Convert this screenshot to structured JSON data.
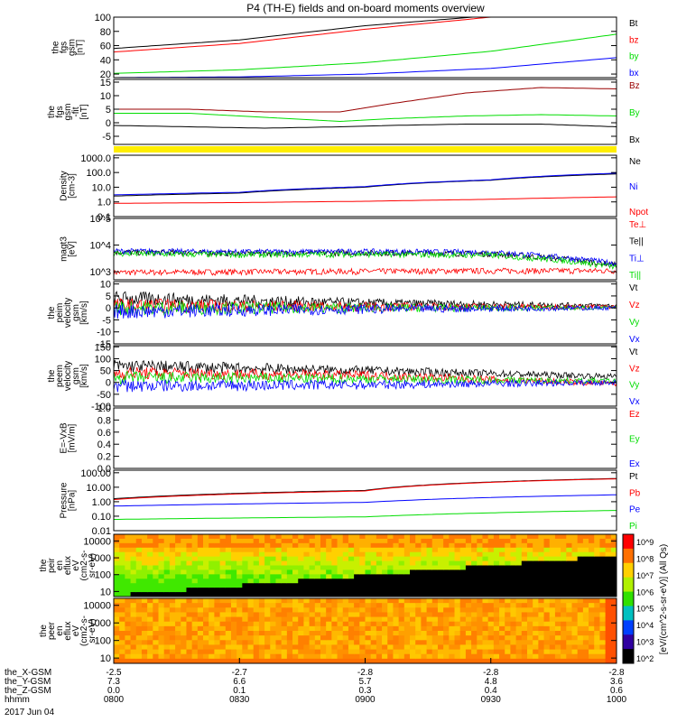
{
  "title": "P4 (TH-E) fields and on-board moments overview",
  "date": "2017 Jun 04",
  "colorbar": {
    "tick_labels": [
      "10^2",
      "10^3",
      "10^4",
      "10^5",
      "10^6",
      "10^7",
      "10^8",
      "10^9"
    ],
    "label": "[eV/(cm^2-s-sr-eV)] (All Qs)"
  },
  "chart_data": [
    {
      "id": "fgs",
      "type": "line",
      "ylabel": [
        "the",
        "fgs",
        "gsm",
        "[nT]"
      ],
      "yticks": [
        "20",
        "40",
        "60",
        "80",
        "100"
      ],
      "ylim": [
        15,
        100
      ],
      "series": [
        {
          "name": "Bt",
          "color": "#000000",
          "x": [
            0,
            0.25,
            0.5,
            0.75,
            1
          ],
          "y": [
            56,
            68,
            88,
            102,
            102
          ]
        },
        {
          "name": "bz",
          "color": "#ff0000",
          "x": [
            0,
            0.25,
            0.5,
            0.75,
            1
          ],
          "y": [
            51,
            63,
            83,
            100,
            100
          ]
        },
        {
          "name": "by",
          "color": "#00dd00",
          "x": [
            0,
            0.25,
            0.5,
            0.75,
            1
          ],
          "y": [
            21,
            26,
            36,
            52,
            76
          ]
        },
        {
          "name": "bx",
          "color": "#0000ff",
          "x": [
            0,
            0.25,
            0.5,
            0.75,
            1
          ],
          "y": [
            15,
            16,
            20,
            28,
            43
          ]
        }
      ]
    },
    {
      "id": "fgs-dsl",
      "type": "line",
      "ylabel": [
        "the",
        "fgs",
        "gsm",
        "-fit",
        "[nT]"
      ],
      "yticks": [
        "-5",
        "0",
        "5",
        "10",
        "15"
      ],
      "ylim": [
        -8,
        16
      ],
      "series": [
        {
          "name": "Bz",
          "color": "#990000",
          "x": [
            0,
            0.15,
            0.3,
            0.45,
            0.55,
            0.7,
            0.85,
            1
          ],
          "y": [
            5,
            5,
            4,
            4,
            7,
            11,
            13,
            12.5
          ]
        },
        {
          "name": "By",
          "color": "#00dd00",
          "x": [
            0,
            0.15,
            0.3,
            0.45,
            0.55,
            0.7,
            0.85,
            1
          ],
          "y": [
            3.5,
            3.5,
            2,
            0.5,
            1.5,
            2.5,
            3,
            2.5
          ]
        },
        {
          "name": "Bx",
          "color": "#000000",
          "x": [
            0,
            0.15,
            0.3,
            0.45,
            0.55,
            0.7,
            0.85,
            1
          ],
          "y": [
            -1,
            -1.5,
            -2,
            -1.5,
            -1,
            -0.5,
            -0.5,
            -1.5
          ]
        }
      ]
    },
    {
      "id": "density",
      "type": "line",
      "log": true,
      "ylabel": [
        "Density",
        "[cm-3]"
      ],
      "yticks": [
        "0.1",
        "1.0",
        "10.0",
        "100.0",
        "1000.0"
      ],
      "ylim": [
        0.1,
        1500
      ],
      "series": [
        {
          "name": "Ne",
          "color": "#000000",
          "x": [
            0,
            0.25,
            0.5,
            0.75,
            1
          ],
          "y": [
            2.5,
            4,
            10,
            30,
            80
          ]
        },
        {
          "name": "Ni",
          "color": "#0000ff",
          "x": [
            0,
            0.25,
            0.5,
            0.75,
            1
          ],
          "y": [
            3,
            4.5,
            11,
            32,
            90
          ]
        },
        {
          "name": "Npot",
          "color": "#ff0000",
          "x": [
            0,
            0.25,
            0.5,
            0.75,
            1
          ],
          "y": [
            0.8,
            0.9,
            1.1,
            1.5,
            2.2
          ]
        }
      ]
    },
    {
      "id": "temperature",
      "type": "line",
      "log": true,
      "ylabel": [
        "magt3",
        "[eV]"
      ],
      "yticks": [
        "10^3",
        "10^4",
        "10^5"
      ],
      "ylim": [
        500,
        100000
      ],
      "series": [
        {
          "name": "Te⊥",
          "color": "#ff0000",
          "x": [
            0,
            0.25,
            0.5,
            0.75,
            1
          ],
          "y": [
            950,
            1000,
            1050,
            1100,
            1100
          ]
        },
        {
          "name": "Te||",
          "color": "#000000",
          "x": [
            0,
            0.25,
            0.5,
            0.75,
            1
          ],
          "y": [
            5500,
            5000,
            5200,
            4800,
            1800
          ]
        },
        {
          "name": "Ti⊥",
          "color": "#0000ff",
          "x": [
            0,
            0.25,
            0.5,
            0.75,
            1
          ],
          "y": [
            6000,
            5600,
            5800,
            5400,
            2000
          ]
        },
        {
          "name": "Ti||",
          "color": "#00dd00",
          "x": [
            0,
            0.25,
            0.5,
            0.75,
            1
          ],
          "y": [
            4800,
            4400,
            4600,
            4200,
            1500
          ]
        }
      ]
    },
    {
      "id": "peim",
      "type": "line",
      "ylabel": [
        "the",
        "peim",
        "velocity",
        "gsm",
        "[km/s]"
      ],
      "yticks": [
        "-15",
        "-10",
        "-5",
        "0",
        "5",
        "10"
      ],
      "ylim": [
        -15,
        11
      ],
      "series": [
        {
          "name": "Vt",
          "color": "#000000",
          "x": [
            0,
            0.5,
            1
          ],
          "y": [
            4,
            2,
            1
          ]
        },
        {
          "name": "Vz",
          "color": "#ff0000",
          "x": [
            0,
            0.5,
            1
          ],
          "y": [
            1,
            0.5,
            0.5
          ]
        },
        {
          "name": "Vy",
          "color": "#00dd00",
          "x": [
            0,
            0.5,
            1
          ],
          "y": [
            0,
            0,
            0
          ]
        },
        {
          "name": "Vx",
          "color": "#0000ff",
          "x": [
            0,
            0.5,
            1
          ],
          "y": [
            -1.5,
            -0.5,
            0
          ]
        }
      ]
    },
    {
      "id": "peem",
      "type": "line",
      "ylabel": [
        "the",
        "peem",
        "velocity",
        "gsm",
        "[km/s]"
      ],
      "yticks": [
        "-100",
        "-50",
        "0",
        "50",
        "100",
        "150"
      ],
      "ylim": [
        -100,
        155
      ],
      "series": [
        {
          "name": "Vt",
          "color": "#000000",
          "x": [
            0,
            0.5,
            1
          ],
          "y": [
            70,
            50,
            25
          ]
        },
        {
          "name": "Vz",
          "color": "#ff0000",
          "x": [
            0,
            0.5,
            1
          ],
          "y": [
            40,
            30,
            -5
          ]
        },
        {
          "name": "Vy",
          "color": "#00dd00",
          "x": [
            0,
            0.5,
            1
          ],
          "y": [
            20,
            15,
            5
          ]
        },
        {
          "name": "Vx",
          "color": "#0000ff",
          "x": [
            0,
            0.5,
            1
          ],
          "y": [
            -15,
            -10,
            0
          ]
        }
      ]
    },
    {
      "id": "efield",
      "type": "line",
      "ylabel": [
        "E=-VxB",
        "[mV/m]"
      ],
      "yticks": [
        "0.0",
        "0.2",
        "0.4",
        "0.6",
        "0.8",
        "1.0"
      ],
      "ylim": [
        0,
        1
      ],
      "series": [
        {
          "name": "Ez",
          "color": "#ff0000",
          "x": [],
          "y": []
        },
        {
          "name": "Ey",
          "color": "#00dd00",
          "x": [],
          "y": []
        },
        {
          "name": "Ex",
          "color": "#0000ff",
          "x": [],
          "y": []
        }
      ]
    },
    {
      "id": "pressure",
      "type": "line",
      "log": true,
      "ylabel": [
        "Pressure",
        "[nPa]"
      ],
      "yticks": [
        "0.01",
        "0.10",
        "1.00",
        "10.00",
        "100.00"
      ],
      "ylim": [
        0.01,
        150
      ],
      "series": [
        {
          "name": "Pt",
          "color": "#000000",
          "x": [
            0,
            0.5,
            1
          ],
          "y": [
            1.6,
            6,
            40
          ]
        },
        {
          "name": "Pb",
          "color": "#ff0000",
          "x": [
            0,
            0.5,
            1
          ],
          "y": [
            1.4,
            5.5,
            38
          ]
        },
        {
          "name": "Pe",
          "color": "#0000ff",
          "x": [
            0,
            0.5,
            1
          ],
          "y": [
            0.5,
            0.9,
            3
          ]
        },
        {
          "name": "Pi",
          "color": "#00dd00",
          "x": [
            0,
            0.5,
            1
          ],
          "y": [
            0.06,
            0.09,
            0.25
          ]
        }
      ]
    },
    {
      "id": "peir",
      "type": "heatmap",
      "log": true,
      "ylabel": [
        "the",
        "peir",
        "en",
        "eflux",
        "eV",
        "(cm2-s-",
        "sr-eV)"
      ],
      "yticks": [
        "10",
        "100",
        "1000",
        "10000"
      ],
      "ylim": [
        5,
        25000
      ]
    },
    {
      "id": "peer",
      "type": "heatmap",
      "log": true,
      "ylabel": [
        "the",
        "peer",
        "en",
        "eflux",
        "eV",
        "(cm2-s-",
        "sr-eV)"
      ],
      "yticks": [
        "10",
        "100",
        "1000",
        "10000"
      ],
      "ylim": [
        5,
        25000
      ]
    }
  ],
  "ephemeris": {
    "rows": [
      {
        "label": "the_X-GSM",
        "values": [
          "-2.5",
          "-2.7",
          "-2.8",
          "-2.8",
          "-2.8"
        ]
      },
      {
        "label": "the_Y-GSM",
        "values": [
          "7.3",
          "6.6",
          "5.7",
          "4.8",
          "3.6"
        ]
      },
      {
        "label": "the_Z-GSM",
        "values": [
          "0.0",
          "0.1",
          "0.3",
          "0.4",
          "0.6"
        ]
      },
      {
        "label": "hhmm",
        "values": [
          "0800",
          "0830",
          "0900",
          "0930",
          "1000"
        ]
      }
    ]
  }
}
